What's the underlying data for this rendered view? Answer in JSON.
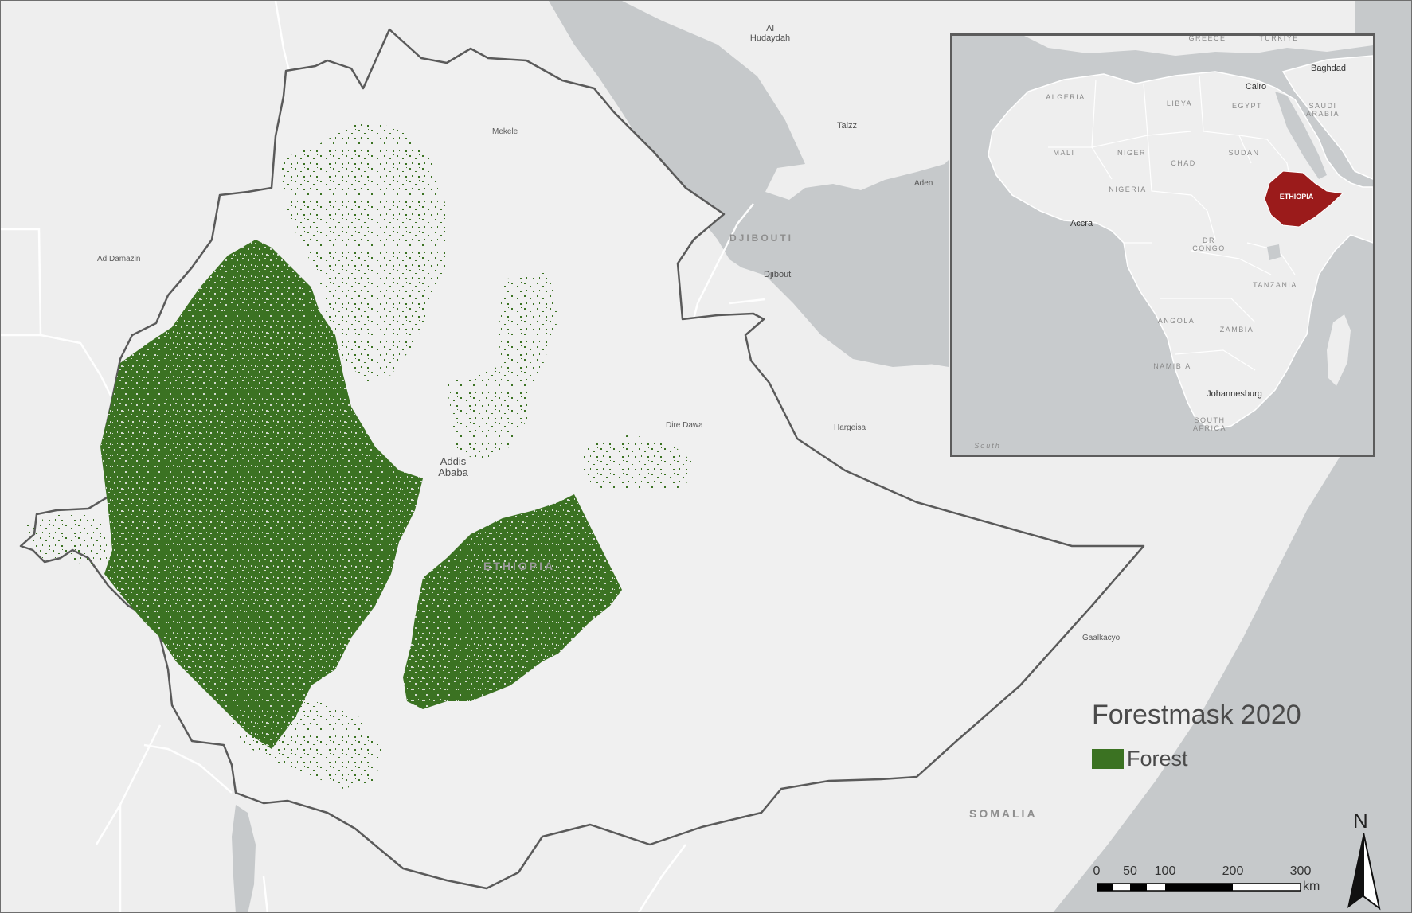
{
  "map": {
    "country_labels": {
      "ethiopia": "ETHIOPIA",
      "djibouti": "DJIBOUTI",
      "somalia": "SOMALIA"
    },
    "city_labels": {
      "al_hudaydah": "Al\nHudaydah",
      "taizz": "Taizz",
      "aden": "Aden",
      "djibouti_city": "Djibouti",
      "mekele": "Mekele",
      "ad_damazin": "Ad Damazin",
      "addis_ababa": "Addis\nAbaba",
      "dire_dawa": "Dire Dawa",
      "hargeisa": "Hargeisa",
      "gaalkacyo": "Gaalkacyo"
    },
    "colors": {
      "background": "#eeeeee",
      "water": "#c6c9cb",
      "forest": "#3b7222",
      "border": "#5a5a5a",
      "highlight": "#9b1b1b"
    }
  },
  "inset": {
    "labels": {
      "algeria": "ALGERIA",
      "libya": "LIBYA",
      "egypt": "EGYPT",
      "saudi_arabia": "SAUDI\nARABIA",
      "mali": "MALI",
      "niger": "NIGER",
      "chad": "CHAD",
      "sudan": "SUDAN",
      "nigeria": "NIGERIA",
      "ethiopia": "ETHIOPIA",
      "dr_congo": "DR\nCONGO",
      "tanzania": "TANZANIA",
      "angola": "ANGOLA",
      "zambia": "ZAMBIA",
      "namibia": "NAMIBIA",
      "south_africa": "SOUTH\nAFRICA",
      "greece": "GREECE",
      "turkiye": "TÜRKIYE",
      "south_sea": "South"
    },
    "cities": {
      "baghdad": "Baghdad",
      "cairo": "Cairo",
      "accra": "Accra",
      "johannesburg": "Johannesburg"
    }
  },
  "legend": {
    "title": "Forestmask 2020",
    "item_label": "Forest",
    "item_color": "#3b7222"
  },
  "scale_bar": {
    "ticks": [
      "0",
      "50",
      "100",
      "200",
      "300"
    ],
    "unit": "km"
  },
  "north_arrow": {
    "label": "N",
    "icon": "north-arrow-icon"
  }
}
